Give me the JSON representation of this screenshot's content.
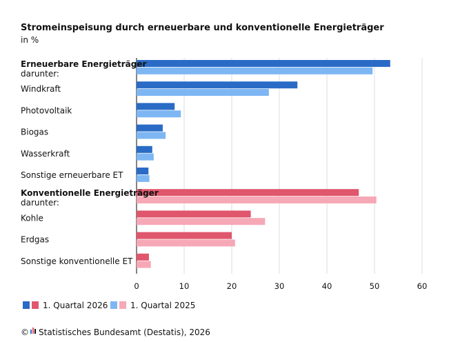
{
  "chart_data": {
    "type": "bar",
    "orientation": "horizontal",
    "title": "Stromeinspeisung durch erneuerbare und konventionelle Energieträger",
    "subtitle": "in %",
    "categories": [
      {
        "label": "Erneuerbare Energieträger",
        "sublabel": "darunter:",
        "bold": true,
        "group": "erneuerbar"
      },
      {
        "label": "Windkraft",
        "group": "erneuerbar"
      },
      {
        "label": "Photovoltaik",
        "group": "erneuerbar"
      },
      {
        "label": "Biogas",
        "group": "erneuerbar"
      },
      {
        "label": "Wasserkraft",
        "group": "erneuerbar"
      },
      {
        "label": "Sonstige erneuerbare ET",
        "group": "erneuerbar"
      },
      {
        "label": "Konventionelle Energieträger",
        "sublabel": "darunter:",
        "bold": true,
        "group": "konventionell"
      },
      {
        "label": "Kohle",
        "group": "konventionell"
      },
      {
        "label": "Erdgas",
        "group": "konventionell"
      },
      {
        "label": "Sonstige konventionelle ET",
        "group": "konventionell"
      }
    ],
    "series": [
      {
        "name": "1. Quartal 2026",
        "values": [
          53.3,
          33.8,
          8.0,
          5.5,
          3.3,
          2.5,
          46.7,
          24.0,
          20.0,
          2.6
        ]
      },
      {
        "name": "1. Quartal 2025",
        "values": [
          49.6,
          27.8,
          9.3,
          6.1,
          3.6,
          2.7,
          50.4,
          27.0,
          20.7,
          3.0
        ]
      }
    ],
    "colors": {
      "erneuerbar": [
        "#2a6bc6",
        "#7db6f3"
      ],
      "konventionell": [
        "#e0566c",
        "#f6a8b6"
      ]
    },
    "xlim": [
      0,
      60
    ],
    "xticks": [
      0,
      10,
      20,
      30,
      40,
      50,
      60
    ],
    "grid": true,
    "legend_placement": "bottom-left",
    "source": "Statistisches Bundesamt (Destatis), 2026",
    "source_prefix": "©"
  }
}
